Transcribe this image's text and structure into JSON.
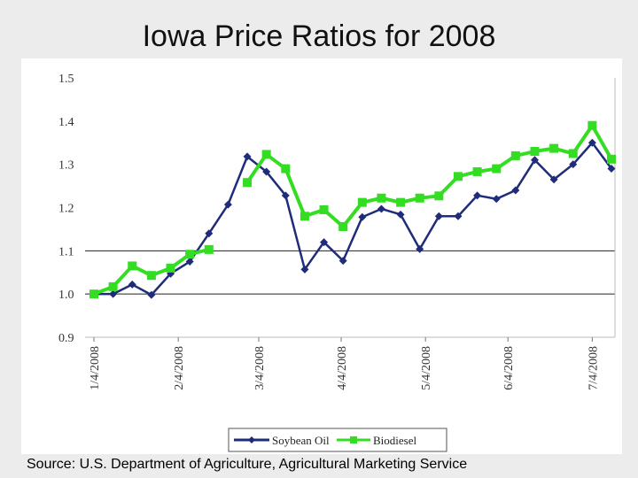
{
  "slide": {
    "title": "Iowa Price Ratios for 2008",
    "source": "Source:  U.S. Department of Agriculture, Agricultural Marketing Service"
  },
  "colors": {
    "soybean": "#1f2c7a",
    "biodiesel": "#33dd22",
    "gridline": "#222222",
    "plot_bg": "#ffffff"
  },
  "chart_data": {
    "type": "line",
    "title": "Iowa Price Ratios for 2008",
    "xlabel": "",
    "ylabel": "",
    "ylim": [
      0.9,
      1.5
    ],
    "y_ticks": [
      0.9,
      1.0,
      1.1,
      1.2,
      1.3,
      1.4,
      1.5
    ],
    "y_tick_labels": [
      "0.9",
      "1.0",
      "1.1",
      "1.2",
      "1.3",
      "1.4",
      "1.5"
    ],
    "gridlines_at": [
      1.1,
      1.0
    ],
    "x_count": 28,
    "x_tick_labels": [
      {
        "index": 0,
        "label": "1/4/2008"
      },
      {
        "index": 4.4,
        "label": "2/4/2008"
      },
      {
        "index": 8.6,
        "label": "3/4/2008"
      },
      {
        "index": 12.9,
        "label": "4/4/2008"
      },
      {
        "index": 17.3,
        "label": "5/4/2008"
      },
      {
        "index": 21.6,
        "label": "6/4/2008"
      },
      {
        "index": 26,
        "label": "7/4/2008"
      }
    ],
    "series": [
      {
        "name": "Soybean Oil",
        "marker": "diamond",
        "values": [
          1.0,
          1.0,
          1.022,
          0.998,
          1.047,
          1.075,
          1.14,
          1.207,
          1.318,
          1.283,
          1.228,
          1.057,
          1.12,
          1.077,
          1.178,
          1.197,
          1.184,
          1.104,
          1.18,
          1.18,
          1.228,
          1.22,
          1.24,
          1.31,
          1.265,
          1.3,
          1.35,
          1.29
        ]
      },
      {
        "name": "Biodiesel",
        "marker": "square",
        "values": [
          1.0,
          1.017,
          1.065,
          1.043,
          1.06,
          1.092,
          1.103,
          null,
          1.258,
          1.323,
          1.29,
          1.18,
          1.195,
          1.156,
          1.212,
          1.222,
          1.212,
          1.222,
          1.227,
          1.272,
          1.283,
          1.29,
          1.32,
          1.33,
          1.337,
          1.325,
          1.39,
          1.312
        ]
      }
    ],
    "legend": {
      "position": "bottom-center",
      "entries": [
        "Soybean Oil",
        "Biodiesel"
      ]
    }
  }
}
